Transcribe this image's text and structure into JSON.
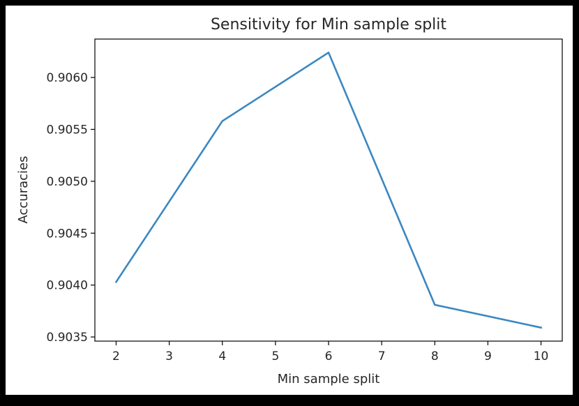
{
  "chart_data": {
    "type": "line",
    "title": "Sensitivity for Min sample split",
    "xlabel": "Min sample split",
    "ylabel": "Accuracies",
    "x": [
      2,
      4,
      6,
      8,
      10
    ],
    "series": [
      {
        "values": [
          0.90403,
          0.90558,
          0.90624,
          0.90381,
          0.90359
        ],
        "color": "#3a87c1"
      }
    ],
    "xlim": [
      1.6,
      10.4
    ],
    "ylim": [
      0.90346,
      0.90637
    ],
    "xticks": [
      2,
      3,
      4,
      5,
      6,
      7,
      8,
      9,
      10
    ],
    "yticks": [
      "0.9035",
      "0.9040",
      "0.9045",
      "0.9050",
      "0.9055",
      "0.9060"
    ],
    "grid": false,
    "legend": false
  }
}
